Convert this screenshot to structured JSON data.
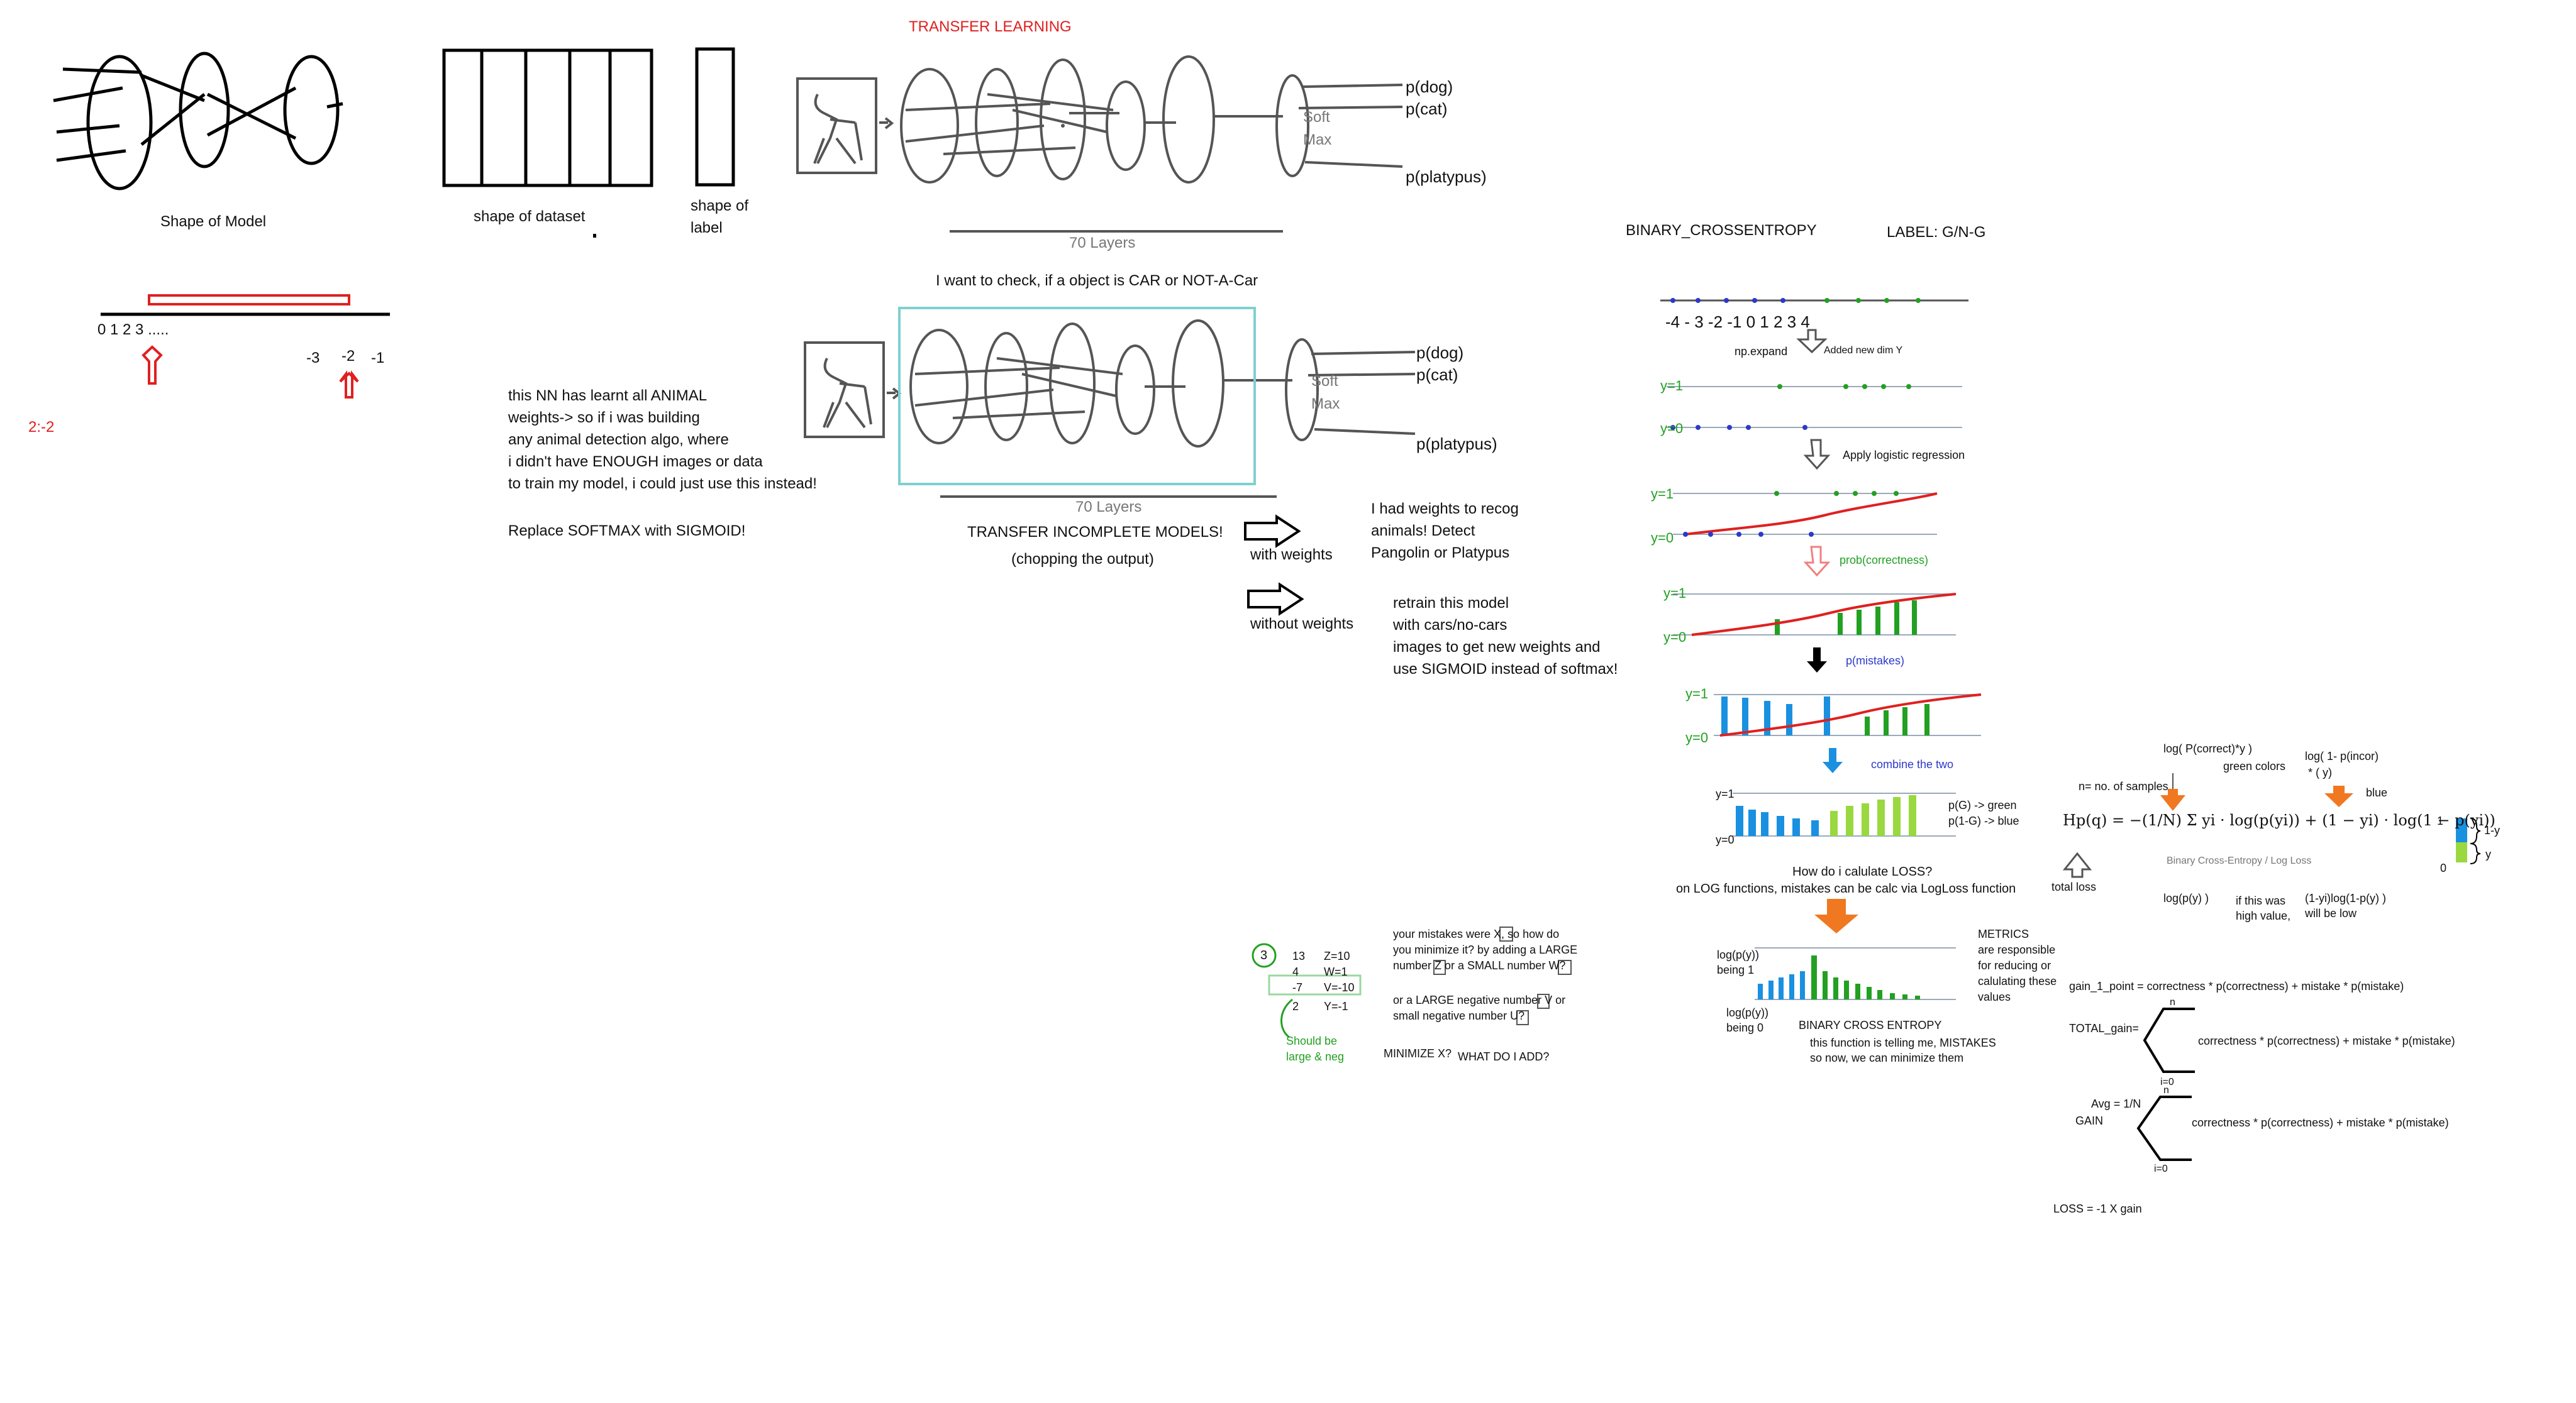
{
  "labels": {
    "shape_model": "Shape of Model",
    "shape_dataset": "shape of dataset",
    "shape_label_1": "shape of",
    "shape_label_2": "label",
    "number_line": "0  1   2  3 .....",
    "neg3": "-3",
    "neg2": "-2",
    "neg1": "-1",
    "slice": "2:-2",
    "transfer_title": "TRANSFER LEARNING",
    "soft_max_1": "Soft",
    "soft_max_2": "Max",
    "p_dog": "p(dog)",
    "p_cat": "p(cat)",
    "p_platypus": "p(platypus)",
    "layers": "70 Layers",
    "car_question": "I want to check, if a object is CAR or NOT-A-Car",
    "nn_text": [
      "this NN has learnt all ANIMAL",
      "weights-> so if i was building",
      "any animal detection algo, where",
      "i didn't have ENOUGH images or data",
      "to train my model, i could just use this instead!",
      "",
      "Replace SOFTMAX with SIGMOID!"
    ],
    "transfer_incomplete": "TRANSFER INCOMPLETE MODELS!",
    "chopping": "(chopping the output)",
    "with_weights": "with weights",
    "without_weights": "without weights",
    "recog_text": [
      "I had weights to recog",
      "animals! Detect",
      "Pangolin or Platypus"
    ],
    "retrain_text": [
      "retrain this model",
      "with cars/no-cars",
      "images to get new weights and",
      "use SIGMOID instead of softmax!"
    ]
  },
  "bce": {
    "title": "BINARY_CROSSENTROPY",
    "label": "LABEL: G/N-G",
    "axis_ticks": "-4  - 3   -2  -1     0      1      2      3    4",
    "np_expand": "np.expand",
    "added_dim": "Added new dim Y",
    "y1": "y=1",
    "y0": "y=0",
    "apply_lr": "Apply logistic regression",
    "prob_correct": "prob(correctness)",
    "p_mistakes": "p(mistakes)",
    "combine": "combine the two",
    "pg_green": "p(G) -> green",
    "p1g_blue": "p(1-G) -> blue",
    "loss_q": "How do i calulate LOSS?",
    "log_func": "on LOG functions, mistakes can be calc  via LogLoss function",
    "logpy_1": [
      "log(p(y))",
      "being 1"
    ],
    "logpy_0": [
      "log(p(y))",
      "being 0"
    ],
    "metrics": [
      "METRICS",
      "are responsible",
      "for reducing or",
      "calulating these",
      "values"
    ],
    "bce_label": "BINARY CROSS ENTROPY",
    "bce_desc": [
      "this function is telling me, MISTAKES",
      "so now, we can minimize them"
    ]
  },
  "minimize": {
    "circled": "3",
    "nums": [
      "13",
      "4",
      "-7",
      "2"
    ],
    "vars": [
      "Z=10",
      "W=1",
      "V=-10",
      "Y=-1"
    ],
    "question": [
      "your mistakes were X, so how do",
      "you minimize it? by adding a LARGE",
      "number Z or a SMALL number W?"
    ],
    "question2": [
      "or a LARGE negative number V or",
      "small negative number U?"
    ],
    "should": [
      "Should be",
      "large & neg"
    ],
    "min_x": "MINIMIZE X?",
    "what_add": "WHAT DO I ADD?"
  },
  "formula": {
    "n_samples": "n= no. of samples",
    "log_correct": "log(  P(correct)*y  )",
    "green_colors": "green colors",
    "log_incor": "log( 1-  p(incor)",
    "incor_y": "* (   y)",
    "blue": "blue",
    "equation": "Hp(q) = −(1/N) Σ yi · log(p(yi)) + (1 − yi) · log(1 − p(yi))",
    "bce_small": "Binary Cross-Entropy / Log Loss",
    "total_loss": "total loss",
    "logpy": "log(p(y) )",
    "high_value": [
      "if this was",
      "high value,"
    ],
    "one_minus": [
      "(1-yi)log(1-p(y) )",
      "will be low"
    ],
    "one": "1",
    "zero": "0",
    "one_y": "1-y",
    "y": "y",
    "gain1": "gain_1_point    =        correctness * p(correctness) + mistake * p(mistake)",
    "total_gain": "TOTAL_gain=",
    "sum_term": "correctness * p(correctness) + mistake * p(mistake)",
    "sum_n": "n",
    "sum_i0": "i=0",
    "avg": [
      "Avg = 1/N",
      "GAIN"
    ],
    "loss": "LOSS = -1 X gain"
  }
}
